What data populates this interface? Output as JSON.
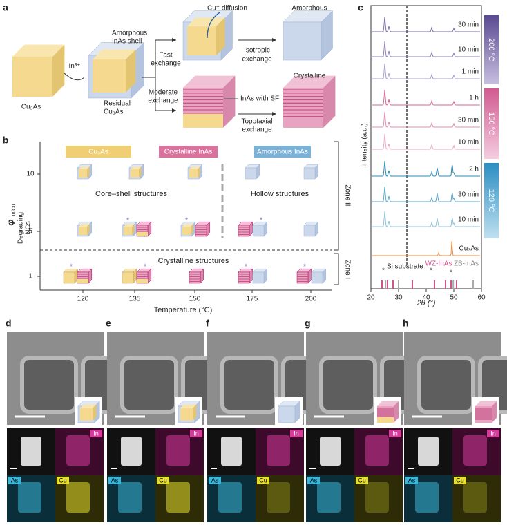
{
  "panel_a": {
    "label": "a",
    "cu3as": "Cu₃As",
    "in3": "In³⁺",
    "shell": [
      "Amorphous",
      "InAs shell"
    ],
    "residual": [
      "Residual",
      "Cu₃As"
    ],
    "fast": [
      "Fast",
      "exchange"
    ],
    "moderate": [
      "Moderate",
      "exchange"
    ],
    "cu_diffusion": "Cu⁺ diffusion",
    "isotropic": [
      "Isotropic",
      "exchange"
    ],
    "amorphous": "Amorphous",
    "sf": "InAs with SF",
    "topotaxial": [
      "Topotaxial",
      "exchange"
    ],
    "crystalline": "Crystalline"
  },
  "panel_b": {
    "label": "b",
    "legend": [
      "Cu₃As",
      "Crystalline InAs",
      "Amorphous InAs"
    ],
    "y_label": "φ",
    "y_label_sub": "In/Cu",
    "degrading": [
      "Degrading",
      "NCs"
    ],
    "x_label": "Temperature (°C)",
    "xticks": [
      120,
      135,
      150,
      175,
      200
    ],
    "yticks": [
      10,
      5,
      1
    ],
    "core_shell": "Core–shell structures",
    "hollow": "Hollow structures",
    "crystalline": "Crystalline structures",
    "zone2": "Zone II",
    "zone1": "Zone I",
    "star": "*"
  },
  "panel_c": {
    "label": "c",
    "y_label": "Intensity (a.u.)",
    "x_label": "2θ (°)",
    "xticks": [
      20,
      30,
      40,
      50,
      60
    ],
    "traces": [
      "30 min",
      "10 min",
      "1 min",
      "1 h",
      "30 min",
      "10 min",
      "2 h",
      "30 min",
      "10 min",
      "Cu₃As"
    ],
    "temps": [
      "200 °C",
      "150 °C",
      "120 °C"
    ],
    "si": "Si substrate",
    "wz": "WZ-InAs",
    "zb": "ZB-InAs",
    "star": "*"
  },
  "micro": [
    {
      "label": "d",
      "maps": [
        "In",
        "As",
        "Cu"
      ]
    },
    {
      "label": "e",
      "maps": [
        "In",
        "As",
        "Cu"
      ]
    },
    {
      "label": "f",
      "maps": [
        "In",
        "As",
        "Cu"
      ]
    },
    {
      "label": "g",
      "maps": [
        "In",
        "As",
        "Cu"
      ]
    },
    {
      "label": "h",
      "maps": [
        "In",
        "As",
        "Cu"
      ]
    }
  ]
}
